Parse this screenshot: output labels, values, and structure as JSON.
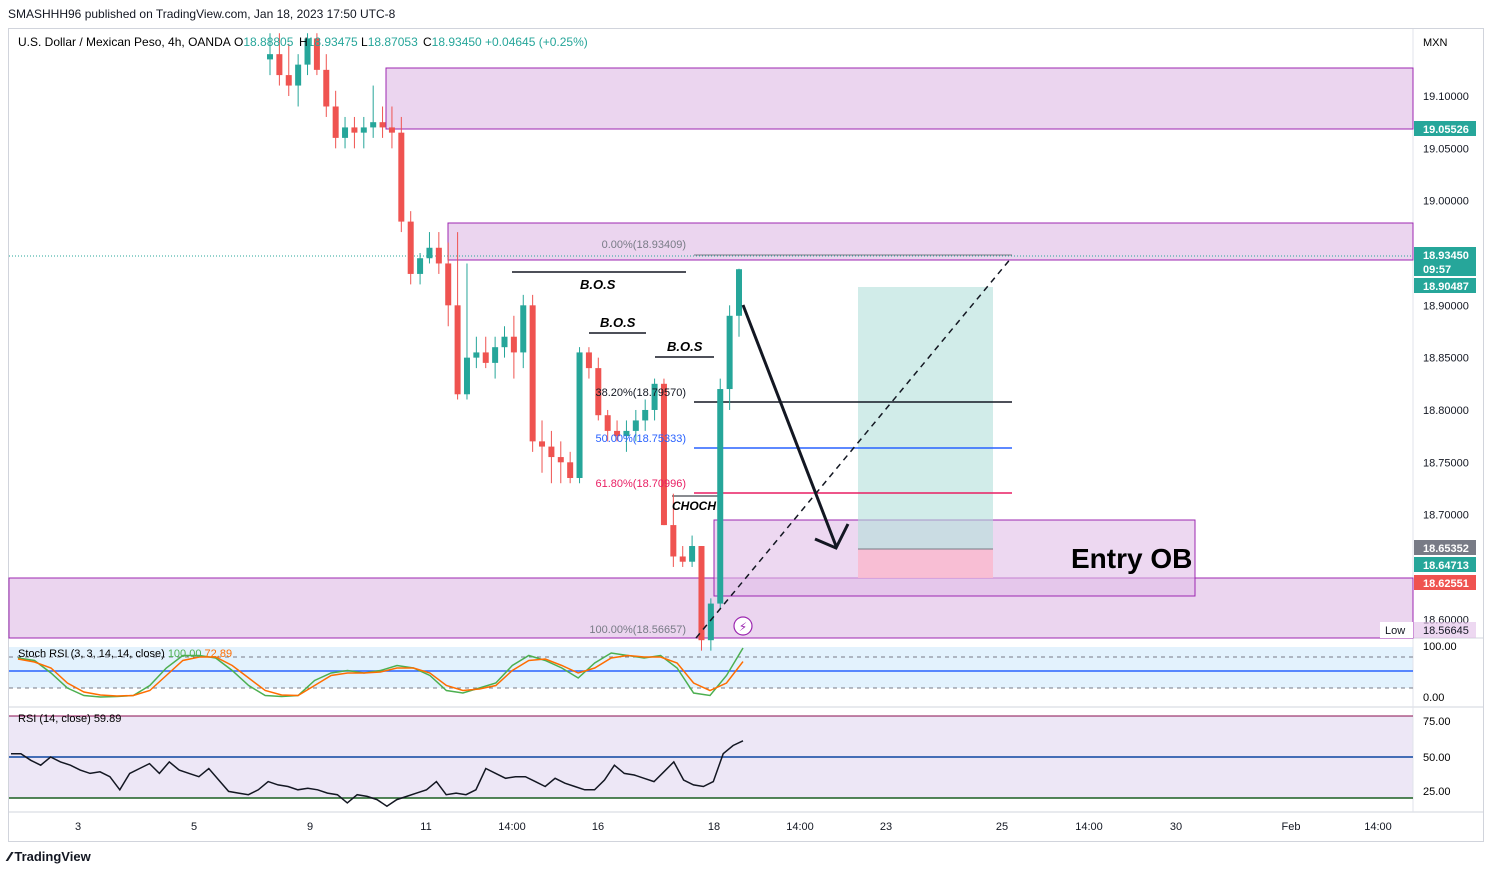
{
  "publish_line": "SMASHHH96 published on TradingView.com, Jan 18, 2023 17:50 UTC-8",
  "brand": "TradingView",
  "brand_icon": "tradingview-logo-icon",
  "colors": {
    "up": "#26a69a",
    "down": "#ef5350",
    "zone": "#e1bee7",
    "target": "#b2dfdb",
    "stop": "#f8bbd0"
  },
  "main": {
    "symbol": "U.S. Dollar / Mexican Peso, 4h, OANDA",
    "ohlc": [
      {
        "label": "O",
        "value": "18.88805"
      },
      {
        "label": "H",
        "value": "18.93475"
      },
      {
        "label": "L",
        "value": "18.87053"
      },
      {
        "label": "C",
        "value": "18.93450"
      },
      {
        "label": "",
        "value": "+0.04645 (+0.25%)"
      }
    ],
    "currency": "MXN",
    "price_ticks": [
      "19.10000",
      "19.05000",
      "19.00000",
      "18.95000",
      "18.90000",
      "18.85000",
      "18.80000",
      "18.75000",
      "18.70000",
      "18.65000",
      "18.60000"
    ],
    "price_badges": [
      {
        "text": "19.05526",
        "color": "#26a69a"
      },
      {
        "text": "18.93450",
        "color": "#26a69a"
      },
      {
        "text": "09:57",
        "color": "#26a69a"
      },
      {
        "text": "18.90487",
        "color": "#26a69a"
      },
      {
        "text": "18.65352",
        "color": "#787b86"
      },
      {
        "text": "18.64713",
        "color": "#26a69a"
      },
      {
        "text": "18.62551",
        "color": "#ef5350"
      }
    ],
    "low_label": "Low",
    "low_value": "18.56645",
    "annotations": {
      "bos": [
        "B.O.S",
        "B.O.S",
        "B.O.S"
      ],
      "choch": "CHOCH",
      "entry": "Entry OB",
      "fib": [
        "0.00%(18.93409)",
        "38.20%(18.79570)",
        "50.00%(18.75333)",
        "61.80%(18.70996)",
        "100.00%(18.56657)"
      ]
    }
  },
  "stoch": {
    "label": "Stoch RSI (3, 3, 14, 14, close)",
    "k": "100.00",
    "d": "72.89",
    "ticks": [
      "100.00",
      "0.00"
    ]
  },
  "rsi": {
    "label": "RSI (14, close)",
    "value": "59.89",
    "ticks": [
      "75.00",
      "50.00",
      "25.00"
    ]
  },
  "time_axis": [
    "3",
    "5",
    "9",
    "11",
    "14:00",
    "16",
    "18",
    "14:00",
    "23",
    "25",
    "14:00",
    "30",
    "Feb",
    "14:00"
  ],
  "chart_data": [
    {
      "type": "candlestick",
      "title": "U.S. Dollar / Mexican Peso, 4h, OANDA",
      "ylim": [
        18.555,
        19.165
      ],
      "ohlc": [
        [
          19.135,
          19.16,
          19.12,
          19.14
        ],
        [
          19.14,
          19.16,
          19.11,
          19.12
        ],
        [
          19.12,
          19.15,
          19.1,
          19.11
        ],
        [
          19.11,
          19.14,
          19.09,
          19.13
        ],
        [
          19.13,
          19.16,
          19.12,
          19.155
        ],
        [
          19.155,
          19.16,
          19.12,
          19.125
        ],
        [
          19.125,
          19.14,
          19.08,
          19.09
        ],
        [
          19.09,
          19.105,
          19.05,
          19.06
        ],
        [
          19.06,
          19.08,
          19.05,
          19.07
        ],
        [
          19.07,
          19.08,
          19.05,
          19.065
        ],
        [
          19.065,
          19.08,
          19.05,
          19.07
        ],
        [
          19.07,
          19.11,
          19.06,
          19.075
        ],
        [
          19.075,
          19.09,
          19.06,
          19.07
        ],
        [
          19.07,
          19.09,
          19.05,
          19.065
        ],
        [
          19.065,
          19.08,
          18.97,
          18.98
        ],
        [
          18.98,
          18.99,
          18.92,
          18.93
        ],
        [
          18.93,
          18.95,
          18.92,
          18.945
        ],
        [
          18.945,
          18.97,
          18.94,
          18.955
        ],
        [
          18.955,
          18.97,
          18.93,
          18.94
        ],
        [
          18.94,
          18.96,
          18.88,
          18.9
        ],
        [
          18.9,
          18.97,
          18.81,
          18.815
        ],
        [
          18.815,
          18.94,
          18.81,
          18.85
        ],
        [
          18.85,
          18.87,
          18.84,
          18.855
        ],
        [
          18.855,
          18.87,
          18.84,
          18.845
        ],
        [
          18.845,
          18.87,
          18.83,
          18.86
        ],
        [
          18.86,
          18.88,
          18.85,
          18.87
        ],
        [
          18.87,
          18.89,
          18.83,
          18.855
        ],
        [
          18.855,
          18.91,
          18.84,
          18.9
        ],
        [
          18.9,
          18.91,
          18.76,
          18.77
        ],
        [
          18.77,
          18.79,
          18.74,
          18.765
        ],
        [
          18.765,
          18.78,
          18.73,
          18.755
        ],
        [
          18.755,
          18.77,
          18.73,
          18.75
        ],
        [
          18.75,
          18.76,
          18.73,
          18.735
        ],
        [
          18.735,
          18.86,
          18.73,
          18.855
        ],
        [
          18.855,
          18.86,
          18.83,
          18.84
        ],
        [
          18.84,
          18.85,
          18.79,
          18.795
        ],
        [
          18.795,
          18.8,
          18.77,
          18.78
        ],
        [
          18.78,
          18.79,
          18.77,
          18.775
        ],
        [
          18.775,
          18.79,
          18.76,
          18.78
        ],
        [
          18.78,
          18.8,
          18.77,
          18.79
        ],
        [
          18.79,
          18.81,
          18.78,
          18.8
        ],
        [
          18.8,
          18.83,
          18.79,
          18.825
        ],
        [
          18.825,
          18.83,
          18.69,
          18.69
        ],
        [
          18.69,
          18.72,
          18.65,
          18.66
        ],
        [
          18.66,
          18.67,
          18.65,
          18.655
        ],
        [
          18.655,
          18.68,
          18.65,
          18.67
        ],
        [
          18.67,
          18.67,
          18.57,
          18.58
        ],
        [
          18.58,
          18.62,
          18.57,
          18.615
        ],
        [
          18.615,
          18.83,
          18.61,
          18.82
        ],
        [
          18.82,
          18.9,
          18.8,
          18.89
        ],
        [
          18.89,
          18.935,
          18.87,
          18.9345
        ]
      ]
    },
    {
      "type": "line",
      "title": "Stoch RSI (3, 3, 14, 14, close)",
      "ylim": [
        0,
        100
      ],
      "series": [
        {
          "name": "K",
          "color": "#4caf50",
          "values": [
            80,
            75,
            50,
            20,
            5,
            2,
            3,
            5,
            25,
            60,
            85,
            85,
            80,
            55,
            25,
            5,
            3,
            5,
            35,
            50,
            55,
            50,
            55,
            65,
            60,
            45,
            15,
            10,
            20,
            30,
            65,
            85,
            75,
            60,
            40,
            70,
            90,
            85,
            80,
            85,
            60,
            10,
            5,
            45,
            100
          ]
        },
        {
          "name": "D",
          "color": "#ff6d00",
          "values": [
            78,
            72,
            60,
            30,
            12,
            6,
            4,
            5,
            15,
            45,
            75,
            82,
            82,
            65,
            40,
            15,
            6,
            5,
            25,
            45,
            50,
            50,
            52,
            60,
            60,
            50,
            25,
            15,
            18,
            25,
            55,
            75,
            78,
            65,
            50,
            60,
            80,
            85,
            82,
            82,
            70,
            30,
            15,
            30,
            72.89
          ]
        }
      ]
    },
    {
      "type": "line",
      "title": "RSI (14, close)",
      "ylim": [
        20,
        80
      ],
      "series": [
        {
          "name": "RSI",
          "color": "#131722",
          "values": [
            52,
            52,
            48,
            45,
            50,
            47,
            45,
            42,
            40,
            41,
            38,
            30,
            40,
            43,
            46,
            40,
            47,
            42,
            40,
            38,
            43,
            36,
            29,
            28,
            27,
            30,
            35,
            33,
            32,
            30,
            31,
            30,
            28,
            27,
            22,
            27,
            26,
            24,
            20,
            24,
            26,
            28,
            30,
            35,
            27,
            28,
            27,
            30,
            43,
            40,
            37,
            38,
            38,
            35,
            32,
            37,
            34,
            32,
            30,
            30,
            36,
            45,
            40,
            39,
            37,
            35,
            41,
            47,
            36,
            33,
            32,
            35,
            52,
            57,
            59.89
          ]
        }
      ]
    }
  ]
}
